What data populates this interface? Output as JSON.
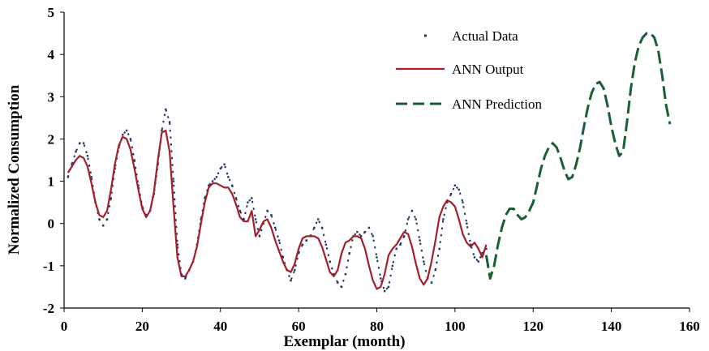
{
  "chart_data": {
    "type": "line",
    "xlabel": "Exemplar (month)",
    "ylabel": "Normalized Consumption",
    "xlim": [
      0,
      160
    ],
    "ylim": [
      -2,
      5
    ],
    "xticks": [
      0,
      20,
      40,
      60,
      80,
      100,
      120,
      140,
      160
    ],
    "yticks": [
      -2,
      -1,
      0,
      1,
      2,
      3,
      4,
      5
    ],
    "x_tick_labels": [
      "0",
      "20",
      "40",
      "60",
      "80",
      "100",
      "120",
      "140",
      "160"
    ],
    "y_tick_labels": [
      "-2",
      "-1",
      "0",
      "1",
      "2",
      "3",
      "4",
      "5"
    ],
    "grid": false,
    "legend_position": "top-right",
    "series": [
      {
        "name": "Actual Data",
        "style": "dotted",
        "color": "#1f3864",
        "x": [
          1,
          2,
          3,
          4,
          5,
          6,
          7,
          8,
          9,
          10,
          11,
          12,
          13,
          14,
          15,
          16,
          17,
          18,
          19,
          20,
          21,
          22,
          23,
          24,
          25,
          26,
          27,
          28,
          29,
          30,
          31,
          32,
          33,
          34,
          35,
          36,
          37,
          38,
          39,
          40,
          41,
          42,
          43,
          44,
          45,
          46,
          47,
          48,
          49,
          50,
          51,
          52,
          53,
          54,
          55,
          56,
          57,
          58,
          59,
          60,
          61,
          62,
          63,
          64,
          65,
          66,
          67,
          68,
          69,
          70,
          71,
          72,
          73,
          74,
          75,
          76,
          77,
          78,
          79,
          80,
          81,
          82,
          83,
          84,
          85,
          86,
          87,
          88,
          89,
          90,
          91,
          92,
          93,
          94,
          95,
          96,
          97,
          98,
          99,
          100,
          101,
          102,
          103,
          104,
          105,
          106,
          107,
          108
        ],
        "y": [
          1.1,
          1.4,
          1.7,
          1.9,
          1.9,
          1.6,
          1.1,
          0.5,
          0.1,
          -0.05,
          0.1,
          0.6,
          1.3,
          1.8,
          2.1,
          2.2,
          2.0,
          1.5,
          0.9,
          0.4,
          0.2,
          0.3,
          0.7,
          1.4,
          2.2,
          2.7,
          2.4,
          1.0,
          -0.5,
          -1.2,
          -1.3,
          -1.1,
          -0.9,
          -0.5,
          0.1,
          0.6,
          0.9,
          1.0,
          1.1,
          1.3,
          1.4,
          1.1,
          0.9,
          0.6,
          0.3,
          0.1,
          0.5,
          0.6,
          0.1,
          -0.3,
          0.0,
          0.3,
          0.2,
          -0.1,
          -0.4,
          -0.8,
          -1.1,
          -1.35,
          -1.1,
          -0.7,
          -0.5,
          -0.4,
          -0.3,
          -0.1,
          0.1,
          -0.1,
          -0.5,
          -0.9,
          -1.2,
          -1.4,
          -1.5,
          -1.2,
          -0.7,
          -0.3,
          -0.2,
          -0.3,
          -0.2,
          -0.1,
          -0.3,
          -0.8,
          -1.3,
          -1.6,
          -1.5,
          -1.0,
          -0.6,
          -0.5,
          -0.3,
          0.1,
          0.3,
          0.1,
          -0.4,
          -0.9,
          -1.3,
          -1.4,
          -1.1,
          -0.6,
          0.1,
          0.5,
          0.7,
          0.9,
          0.8,
          0.5,
          0.0,
          -0.5,
          -0.8,
          -0.9,
          -0.7,
          -0.6
        ]
      },
      {
        "name": "ANN Output",
        "style": "solid",
        "color": "#a31f2a",
        "x": [
          1,
          2,
          3,
          4,
          5,
          6,
          7,
          8,
          9,
          10,
          11,
          12,
          13,
          14,
          15,
          16,
          17,
          18,
          19,
          20,
          21,
          22,
          23,
          24,
          25,
          26,
          27,
          28,
          29,
          30,
          31,
          32,
          33,
          34,
          35,
          36,
          37,
          38,
          39,
          40,
          41,
          42,
          43,
          44,
          45,
          46,
          47,
          48,
          49,
          50,
          51,
          52,
          53,
          54,
          55,
          56,
          57,
          58,
          59,
          60,
          61,
          62,
          63,
          64,
          65,
          66,
          67,
          68,
          69,
          70,
          71,
          72,
          73,
          74,
          75,
          76,
          77,
          78,
          79,
          80,
          81,
          82,
          83,
          84,
          85,
          86,
          87,
          88,
          89,
          90,
          91,
          92,
          93,
          94,
          95,
          96,
          97,
          98,
          99,
          100,
          101,
          102,
          103,
          104,
          105,
          106,
          107,
          108
        ],
        "y": [
          1.2,
          1.35,
          1.5,
          1.6,
          1.55,
          1.35,
          0.95,
          0.5,
          0.2,
          0.15,
          0.3,
          0.8,
          1.4,
          1.85,
          2.05,
          2.0,
          1.75,
          1.3,
          0.8,
          0.35,
          0.15,
          0.3,
          0.75,
          1.5,
          2.15,
          2.2,
          1.7,
          0.4,
          -0.8,
          -1.25,
          -1.25,
          -1.1,
          -0.9,
          -0.55,
          0.0,
          0.5,
          0.85,
          0.95,
          0.95,
          0.9,
          0.85,
          0.85,
          0.7,
          0.45,
          0.15,
          0.05,
          0.05,
          0.3,
          -0.3,
          -0.15,
          0.05,
          0.1,
          -0.1,
          -0.4,
          -0.65,
          -0.9,
          -1.1,
          -1.15,
          -0.95,
          -0.6,
          -0.35,
          -0.3,
          -0.3,
          -0.3,
          -0.35,
          -0.55,
          -0.85,
          -1.15,
          -1.25,
          -1.1,
          -0.7,
          -0.45,
          -0.4,
          -0.3,
          -0.3,
          -0.35,
          -0.6,
          -1.0,
          -1.35,
          -1.55,
          -1.5,
          -1.2,
          -0.75,
          -0.6,
          -0.5,
          -0.35,
          -0.2,
          -0.25,
          -0.55,
          -0.95,
          -1.3,
          -1.45,
          -1.3,
          -0.9,
          -0.4,
          0.15,
          0.4,
          0.55,
          0.5,
          0.4,
          0.1,
          -0.25,
          -0.45,
          -0.55,
          -0.45,
          -0.6,
          -0.8,
          -0.5
        ]
      },
      {
        "name": "ANN Prediction",
        "style": "dashed",
        "color": "#1a5e34",
        "x": [
          108,
          109,
          110,
          111,
          112,
          113,
          114,
          115,
          116,
          117,
          118,
          119,
          120,
          121,
          122,
          123,
          124,
          125,
          126,
          127,
          128,
          129,
          130,
          131,
          132,
          133,
          134,
          135,
          136,
          137,
          138,
          139,
          140,
          141,
          142,
          143,
          144,
          145,
          146,
          147,
          148,
          149,
          150,
          151,
          152,
          153,
          154,
          155
        ],
        "y": [
          -0.75,
          -1.3,
          -1.0,
          -0.5,
          -0.1,
          0.2,
          0.35,
          0.35,
          0.2,
          0.1,
          0.15,
          0.3,
          0.5,
          0.9,
          1.3,
          1.6,
          1.8,
          1.9,
          1.8,
          1.55,
          1.25,
          1.05,
          1.1,
          1.4,
          1.8,
          2.3,
          2.75,
          3.1,
          3.3,
          3.35,
          3.2,
          2.8,
          2.3,
          1.9,
          1.6,
          1.7,
          2.4,
          3.2,
          3.8,
          4.2,
          4.4,
          4.5,
          4.5,
          4.4,
          4.1,
          3.5,
          2.8,
          2.35
        ]
      }
    ]
  }
}
